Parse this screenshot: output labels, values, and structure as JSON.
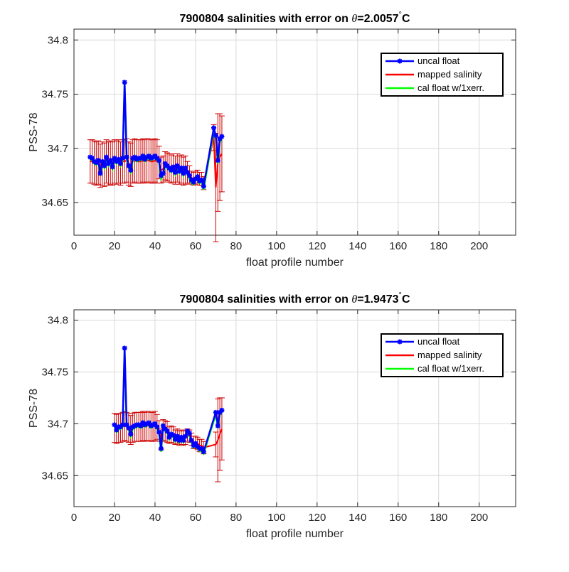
{
  "colors": {
    "uncal": "#0000ff",
    "mapped": "#ff0000",
    "errorbar": "#cc0000",
    "cal": "#00ff00",
    "grid": "#d9d9d9",
    "axis": "#262626"
  },
  "chart_data": [
    {
      "type": "line",
      "title_prefix": "7900804 salinities with error on ",
      "title_theta": "θ",
      "title_value": "=2.0057",
      "title_degree": "°",
      "title_unit": "C",
      "xlabel": "float profile number",
      "ylabel": "PSS-78",
      "xlim": [
        0,
        218
      ],
      "ylim": [
        34.62,
        34.81
      ],
      "xticks": [
        0,
        20,
        40,
        60,
        80,
        100,
        120,
        140,
        160,
        180,
        200
      ],
      "xtick_labels": [
        "0",
        "20",
        "40",
        "60",
        "80",
        "100",
        "120",
        "140",
        "160",
        "180",
        "200"
      ],
      "yticks": [
        34.65,
        34.7,
        34.75,
        34.8
      ],
      "ytick_labels": [
        "34.65",
        "34.7",
        "34.75",
        "34.8"
      ],
      "grid": true,
      "legend_position": "top-right",
      "legend": [
        "uncal float",
        "mapped salinity",
        "cal float w/1xerr."
      ],
      "series": [
        {
          "name": "uncal float",
          "x": [
            8,
            9,
            10,
            11,
            12,
            13,
            14,
            15,
            16,
            17,
            18,
            19,
            20,
            21,
            22,
            23,
            24,
            25,
            26,
            27,
            28,
            29,
            30,
            31,
            32,
            33,
            34,
            35,
            36,
            37,
            38,
            39,
            40,
            41,
            42,
            43,
            44,
            45,
            46,
            47,
            48,
            49,
            50,
            51,
            52,
            53,
            54,
            55,
            56,
            57,
            58,
            59,
            60,
            61,
            62,
            63,
            64,
            69,
            70,
            71,
            72,
            73
          ],
          "y": [
            34.692,
            34.691,
            34.688,
            34.687,
            34.689,
            34.677,
            34.688,
            34.684,
            34.692,
            34.686,
            34.689,
            34.683,
            34.691,
            34.688,
            34.69,
            34.686,
            34.691,
            34.761,
            34.692,
            34.684,
            34.68,
            34.691,
            34.692,
            34.69,
            34.691,
            34.691,
            34.693,
            34.69,
            34.692,
            34.693,
            34.691,
            34.692,
            34.693,
            34.691,
            34.689,
            34.675,
            34.677,
            34.686,
            34.684,
            34.682,
            34.68,
            34.683,
            34.678,
            34.684,
            34.679,
            34.682,
            34.677,
            34.682,
            34.678,
            34.675,
            34.671,
            34.669,
            34.672,
            34.674,
            34.67,
            34.671,
            34.665,
            34.719,
            34.712,
            34.689,
            34.709,
            34.711
          ]
        },
        {
          "name": "mapped salinity",
          "x": [
            8,
            9,
            10,
            11,
            12,
            13,
            14,
            15,
            16,
            17,
            18,
            19,
            20,
            21,
            22,
            23,
            24,
            25,
            26,
            27,
            28,
            29,
            30,
            31,
            32,
            33,
            34,
            35,
            36,
            37,
            38,
            39,
            40,
            41,
            42,
            43,
            44,
            45,
            46,
            47,
            48,
            49,
            50,
            51,
            52,
            53,
            54,
            55,
            56,
            57,
            58,
            59,
            60,
            61,
            62,
            63,
            64,
            69,
            70,
            71,
            72,
            73
          ],
          "y": [
            34.688,
            34.688,
            34.687,
            34.686,
            34.687,
            34.684,
            34.686,
            34.685,
            34.688,
            34.686,
            34.687,
            34.686,
            34.688,
            34.687,
            34.688,
            34.686,
            34.688,
            34.688,
            34.689,
            34.686,
            34.685,
            34.688,
            34.689,
            34.688,
            34.688,
            34.688,
            34.689,
            34.688,
            34.689,
            34.689,
            34.688,
            34.688,
            34.689,
            34.688,
            34.687,
            34.68,
            34.681,
            34.684,
            34.683,
            34.682,
            34.681,
            34.682,
            34.68,
            34.682,
            34.68,
            34.681,
            34.679,
            34.68,
            34.678,
            34.676,
            34.673,
            34.672,
            34.673,
            34.674,
            34.672,
            34.672,
            34.668,
            34.71,
            34.664,
            34.687,
            34.692,
            34.695
          ],
          "err": [
            0.02,
            0.02,
            0.02,
            0.02,
            0.02,
            0.02,
            0.02,
            0.02,
            0.02,
            0.02,
            0.02,
            0.02,
            0.02,
            0.02,
            0.02,
            0.02,
            0.02,
            0.02,
            0.02,
            0.02,
            0.02,
            0.02,
            0.02,
            0.02,
            0.02,
            0.02,
            0.02,
            0.02,
            0.02,
            0.02,
            0.02,
            0.02,
            0.02,
            0.02,
            0.015,
            0.012,
            0.012,
            0.013,
            0.013,
            0.013,
            0.013,
            0.013,
            0.013,
            0.013,
            0.013,
            0.013,
            0.013,
            0.013,
            0.01,
            0.008,
            0.006,
            0.006,
            0.006,
            0.006,
            0.006,
            0.006,
            0.006,
            0.012,
            0.05,
            0.045,
            0.04,
            0.035
          ]
        },
        {
          "name": "cal float w/1xerr.",
          "x": [
            8,
            9,
            10,
            11,
            12,
            13,
            14,
            15,
            16,
            17,
            18,
            19,
            20,
            21,
            22,
            23,
            24,
            25,
            26,
            27,
            28,
            29,
            30,
            31,
            32,
            33,
            34,
            35,
            36,
            37,
            38,
            39,
            40,
            41,
            42,
            43,
            44,
            45,
            46,
            47,
            48,
            49,
            50,
            51,
            52,
            53,
            54,
            55,
            56,
            57,
            58,
            59,
            60,
            61,
            62,
            63,
            64,
            69,
            70,
            71,
            72,
            73
          ],
          "y": [
            34.69,
            34.689,
            34.686,
            34.685,
            34.687,
            34.675,
            34.686,
            34.682,
            34.69,
            34.684,
            34.687,
            34.681,
            34.689,
            34.686,
            34.688,
            34.684,
            34.689,
            34.759,
            34.69,
            34.682,
            34.678,
            34.689,
            34.69,
            34.688,
            34.689,
            34.689,
            34.691,
            34.688,
            34.69,
            34.691,
            34.689,
            34.69,
            34.691,
            34.689,
            34.687,
            34.672,
            34.675,
            34.684,
            34.682,
            34.68,
            34.678,
            34.681,
            34.676,
            34.682,
            34.677,
            34.68,
            34.675,
            34.68,
            34.676,
            34.672,
            34.668,
            34.667,
            34.67,
            34.672,
            34.668,
            34.669,
            34.662,
            34.716,
            34.709,
            34.686,
            34.706,
            34.708
          ]
        }
      ]
    },
    {
      "type": "line",
      "title_prefix": "7900804 salinities with error on ",
      "title_theta": "θ",
      "title_value": "=1.9473",
      "title_degree": "°",
      "title_unit": "C",
      "xlabel": "float profile number",
      "ylabel": "PSS-78",
      "xlim": [
        0,
        218
      ],
      "ylim": [
        34.62,
        34.81
      ],
      "xticks": [
        0,
        20,
        40,
        60,
        80,
        100,
        120,
        140,
        160,
        180,
        200
      ],
      "xtick_labels": [
        "0",
        "20",
        "40",
        "60",
        "80",
        "100",
        "120",
        "140",
        "160",
        "180",
        "200"
      ],
      "yticks": [
        34.65,
        34.7,
        34.75,
        34.8
      ],
      "ytick_labels": [
        "34.65",
        "34.7",
        "34.75",
        "34.8"
      ],
      "grid": true,
      "legend_position": "top-right",
      "legend": [
        "uncal float",
        "mapped salinity",
        "cal float w/1xerr."
      ],
      "series": [
        {
          "name": "uncal float",
          "x": [
            20,
            21,
            22,
            23,
            24,
            25,
            26,
            27,
            28,
            29,
            30,
            31,
            32,
            33,
            34,
            35,
            36,
            37,
            38,
            39,
            40,
            41,
            42,
            43,
            44,
            45,
            46,
            47,
            48,
            49,
            50,
            51,
            52,
            53,
            54,
            55,
            56,
            57,
            58,
            59,
            60,
            61,
            62,
            63,
            64,
            70,
            71,
            72,
            73
          ],
          "y": [
            34.699,
            34.694,
            34.697,
            34.697,
            34.699,
            34.773,
            34.699,
            34.696,
            34.69,
            34.697,
            34.698,
            34.699,
            34.699,
            34.698,
            34.701,
            34.699,
            34.7,
            34.701,
            34.698,
            34.699,
            34.7,
            34.697,
            34.692,
            34.676,
            34.698,
            34.695,
            34.693,
            34.687,
            34.69,
            34.689,
            34.685,
            34.688,
            34.684,
            34.687,
            34.684,
            34.688,
            34.693,
            34.691,
            34.684,
            34.679,
            34.681,
            34.678,
            34.676,
            34.676,
            34.673,
            34.711,
            34.698,
            34.711,
            34.713
          ]
        },
        {
          "name": "mapped salinity",
          "x": [
            20,
            21,
            22,
            23,
            24,
            25,
            26,
            27,
            28,
            29,
            30,
            31,
            32,
            33,
            34,
            35,
            36,
            37,
            38,
            39,
            40,
            41,
            42,
            43,
            44,
            45,
            46,
            47,
            48,
            49,
            50,
            51,
            52,
            53,
            54,
            55,
            56,
            57,
            58,
            59,
            60,
            61,
            62,
            63,
            64,
            70,
            71,
            72,
            73
          ],
          "y": [
            34.696,
            34.695,
            34.696,
            34.696,
            34.697,
            34.698,
            34.697,
            34.696,
            34.694,
            34.696,
            34.697,
            34.697,
            34.697,
            34.697,
            34.698,
            34.697,
            34.698,
            34.698,
            34.697,
            34.697,
            34.698,
            34.697,
            34.693,
            34.685,
            34.694,
            34.693,
            34.692,
            34.689,
            34.69,
            34.689,
            34.687,
            34.688,
            34.686,
            34.687,
            34.686,
            34.687,
            34.689,
            34.688,
            34.685,
            34.682,
            34.682,
            34.681,
            34.679,
            34.679,
            34.677,
            34.68,
            34.684,
            34.69,
            34.695
          ],
          "err": [
            0.014,
            0.014,
            0.014,
            0.014,
            0.014,
            0.014,
            0.014,
            0.014,
            0.014,
            0.014,
            0.014,
            0.014,
            0.014,
            0.014,
            0.014,
            0.014,
            0.014,
            0.014,
            0.014,
            0.014,
            0.014,
            0.012,
            0.01,
            0.01,
            0.01,
            0.01,
            0.01,
            0.008,
            0.008,
            0.008,
            0.007,
            0.007,
            0.007,
            0.007,
            0.007,
            0.007,
            0.006,
            0.006,
            0.006,
            0.006,
            0.006,
            0.006,
            0.006,
            0.006,
            0.006,
            0.012,
            0.04,
            0.035,
            0.03
          ]
        },
        {
          "name": "cal float w/1xerr.",
          "x": [
            20,
            21,
            22,
            23,
            24,
            25,
            26,
            27,
            28,
            29,
            30,
            31,
            32,
            33,
            34,
            35,
            36,
            37,
            38,
            39,
            40,
            41,
            42,
            43,
            44,
            45,
            46,
            47,
            48,
            49,
            50,
            51,
            52,
            53,
            54,
            55,
            56,
            57,
            58,
            59,
            60,
            61,
            62,
            63,
            64,
            70,
            71,
            72,
            73
          ],
          "y": [
            34.697,
            34.692,
            34.695,
            34.695,
            34.697,
            34.771,
            34.697,
            34.694,
            34.688,
            34.695,
            34.696,
            34.697,
            34.697,
            34.696,
            34.699,
            34.697,
            34.698,
            34.699,
            34.696,
            34.697,
            34.698,
            34.695,
            34.69,
            34.673,
            34.696,
            34.693,
            34.691,
            34.685,
            34.688,
            34.687,
            34.683,
            34.686,
            34.682,
            34.685,
            34.682,
            34.686,
            34.691,
            34.689,
            34.682,
            34.677,
            34.679,
            34.676,
            34.674,
            34.673,
            34.671,
            34.709,
            34.696,
            34.709,
            34.711
          ]
        }
      ]
    }
  ]
}
